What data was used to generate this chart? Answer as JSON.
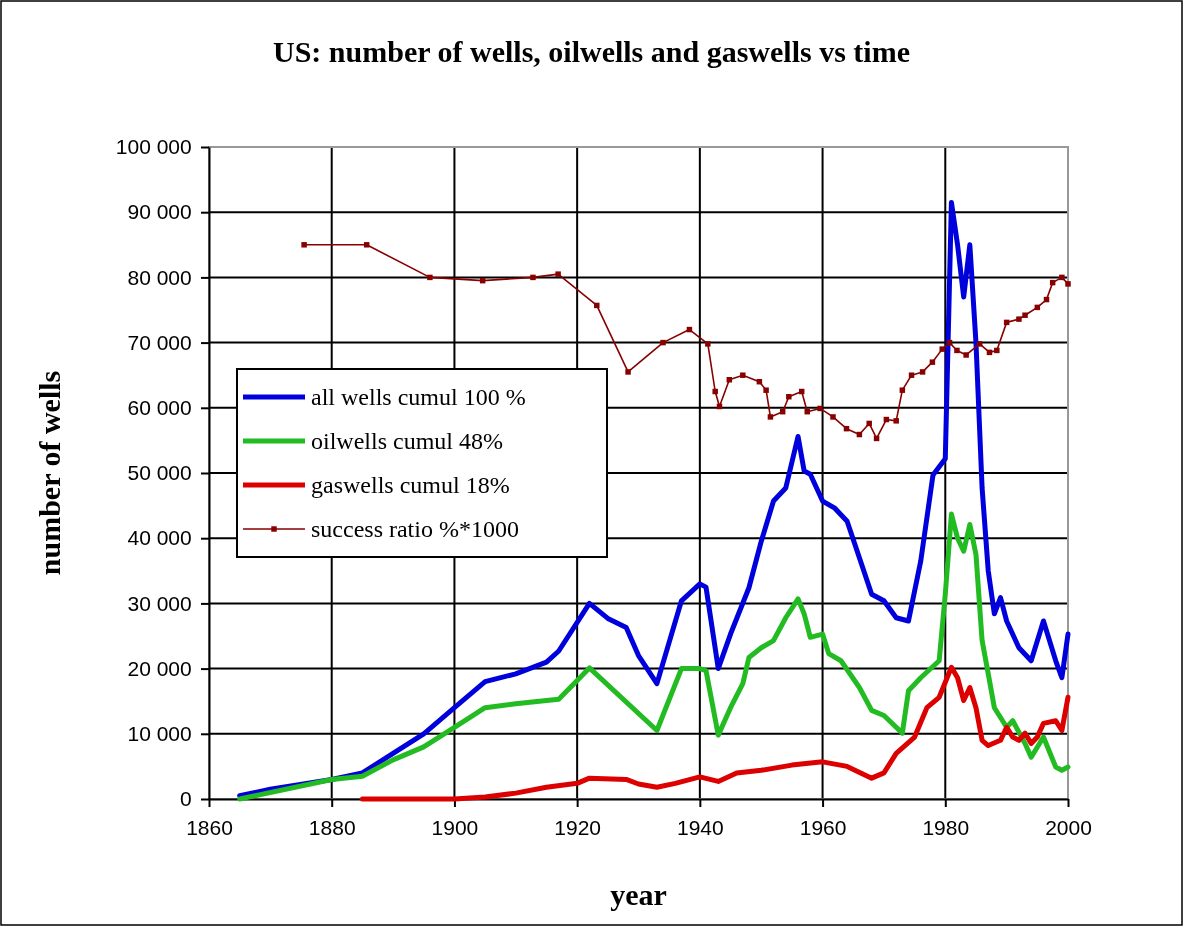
{
  "chart_data": {
    "type": "line",
    "title": "US: number of wells, oilwells and gaswells vs time",
    "xlabel": "year",
    "ylabel": "number of wells",
    "xlim": [
      1860,
      2000
    ],
    "xticks": [
      1860,
      1880,
      1900,
      1920,
      1940,
      1960,
      1980,
      2000
    ],
    "ylim": [
      0,
      100000
    ],
    "yticks": [
      {
        "value": 0,
        "label": "0"
      },
      {
        "value": 10000,
        "label": "10 000"
      },
      {
        "value": 20000,
        "label": "20 000"
      },
      {
        "value": 30000,
        "label": "30 000"
      },
      {
        "value": 40000,
        "label": "40 000"
      },
      {
        "value": 50000,
        "label": "50 000"
      },
      {
        "value": 60000,
        "label": "60 000"
      },
      {
        "value": 70000,
        "label": "70 000"
      },
      {
        "value": 80000,
        "label": "80 000"
      },
      {
        "value": 90000,
        "label": "90 000"
      },
      {
        "value": 100000,
        "label": "100 000"
      }
    ],
    "grid": true,
    "legend": "left",
    "line_style": "solid",
    "series": [
      {
        "name": "all wells cumul 100 %",
        "color": "#0000dd",
        "marker": "none",
        "x": [
          1865,
          1870,
          1880,
          1885,
          1890,
          1895,
          1900,
          1905,
          1910,
          1915,
          1917,
          1922,
          1925,
          1928,
          1930,
          1933,
          1937,
          1940,
          1941,
          1943,
          1945,
          1948,
          1950,
          1952,
          1954,
          1956,
          1957,
          1958,
          1960,
          1962,
          1964,
          1966,
          1968,
          1970,
          1972,
          1974,
          1976,
          1978,
          1980,
          1981,
          1982,
          1983,
          1984,
          1985,
          1986,
          1987,
          1988,
          1989,
          1990,
          1992,
          1994,
          1996,
          1998,
          1999,
          2000
        ],
        "values": [
          500,
          1500,
          3000,
          4000,
          7000,
          10000,
          14000,
          18000,
          19200,
          21000,
          22700,
          30000,
          27700,
          26300,
          22000,
          17700,
          30400,
          33000,
          32500,
          20000,
          25300,
          32400,
          39500,
          45700,
          47700,
          55600,
          50300,
          49800,
          45700,
          44600,
          42600,
          37000,
          31400,
          30400,
          27800,
          27300,
          36500,
          49700,
          52200,
          91500,
          85000,
          77000,
          85000,
          70000,
          47700,
          35000,
          28400,
          30900,
          27300,
          23200,
          21200,
          27300,
          21200,
          18600,
          25300
        ]
      },
      {
        "name": "oilwells cumul 48%",
        "color": "#22bb22",
        "marker": "none",
        "x": [
          1865,
          1880,
          1885,
          1890,
          1895,
          1900,
          1905,
          1910,
          1915,
          1917,
          1922,
          1933,
          1937,
          1940,
          1941,
          1943,
          1945,
          1947,
          1948,
          1950,
          1952,
          1954,
          1956,
          1957,
          1958,
          1960,
          1961,
          1963,
          1966,
          1968,
          1970,
          1973,
          1974,
          1976,
          1979,
          1980,
          1981,
          1982,
          1983,
          1984,
          1985,
          1986,
          1987,
          1988,
          1990,
          1991,
          1993,
          1994,
          1996,
          1998,
          1999,
          2000
        ],
        "values": [
          0,
          3000,
          3500,
          6000,
          8000,
          11000,
          14000,
          14600,
          15100,
          15300,
          20100,
          10500,
          20000,
          20000,
          19700,
          9800,
          14000,
          17700,
          21700,
          23200,
          24300,
          27800,
          30700,
          28400,
          24800,
          25300,
          22300,
          21200,
          17100,
          13600,
          12800,
          10100,
          16600,
          18600,
          21200,
          31400,
          43700,
          40000,
          38000,
          42100,
          37500,
          24300,
          19200,
          14000,
          11000,
          12000,
          8500,
          6400,
          9500,
          4900,
          4400,
          4900
        ]
      },
      {
        "name": "gaswells cumul 18%",
        "color": "#dd0000",
        "marker": "none",
        "x": [
          1885,
          1900,
          1905,
          1910,
          1915,
          1920,
          1922,
          1928,
          1930,
          1933,
          1936,
          1940,
          1943,
          1946,
          1950,
          1955,
          1960,
          1964,
          1968,
          1970,
          1972,
          1975,
          1977,
          1979,
          1981,
          1982,
          1983,
          1984,
          1985,
          1986,
          1987,
          1989,
          1990,
          1991,
          1992,
          1993,
          1994,
          1995,
          1996,
          1998,
          1999,
          2000
        ],
        "values": [
          0,
          0,
          300,
          900,
          1800,
          2400,
          3200,
          3000,
          2300,
          1800,
          2400,
          3400,
          2700,
          4000,
          4400,
          5200,
          5700,
          5000,
          3200,
          4000,
          7000,
          9500,
          14000,
          15600,
          20200,
          18600,
          15100,
          17100,
          14000,
          9000,
          8200,
          9000,
          11000,
          9500,
          9000,
          10100,
          8500,
          9500,
          11600,
          12000,
          10500,
          15600
        ]
      },
      {
        "name": "success ratio %*1000",
        "color": "#880000",
        "marker": "square",
        "x": [
          1875.5,
          1885.7,
          1896,
          1904.6,
          1912.8,
          1916.9,
          1923.2,
          1928.3,
          1934,
          1938.3,
          1941.3,
          1942.5,
          1943.2,
          1944.8,
          1947,
          1949.7,
          1950.8,
          1951.5,
          1953.5,
          1954.5,
          1956.6,
          1957.5,
          1959.6,
          1961.7,
          1963.9,
          1966,
          1967.6,
          1968.8,
          1970.4,
          1972,
          1973,
          1974.5,
          1976.3,
          1977.9,
          1979.5,
          1980.7,
          1981.9,
          1983.4,
          1985.6,
          1987.2,
          1988.4,
          1990,
          1992,
          1993,
          1995,
          1996.5,
          1997.5,
          1999,
          2000
        ],
        "values": [
          85000,
          85000,
          80000,
          79500,
          80000,
          80500,
          75700,
          65500,
          70000,
          72000,
          69800,
          62500,
          60200,
          64300,
          65000,
          64000,
          62700,
          58600,
          59400,
          61700,
          62500,
          59400,
          59900,
          58600,
          56800,
          55900,
          57600,
          55300,
          58200,
          58000,
          62700,
          65000,
          65500,
          67000,
          69000,
          70000,
          68800,
          68100,
          69800,
          68500,
          68800,
          73100,
          73600,
          74200,
          75400,
          76600,
          79200,
          80000,
          79000
        ]
      }
    ]
  }
}
